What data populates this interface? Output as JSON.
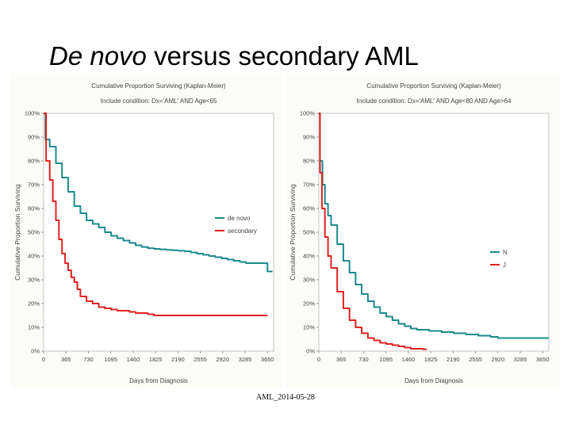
{
  "slide": {
    "title_italic": "De novo",
    "title_rest": " versus secondary AML",
    "footer": "AML_2014-05-28"
  },
  "colors": {
    "series1": "#1a8a8c",
    "series2": "#e02020",
    "axis_text": "#444444"
  },
  "chart_data": [
    {
      "type": "line",
      "title": "Cumulative Proportion Surviving (Kaplan-Meier)",
      "subtitle": "Include condition: Dx='AML' AND Age<65",
      "xlabel": "Days from Diagnosis",
      "ylabel": "Cumulative Proportion Surviving",
      "xlim": [
        0,
        3750
      ],
      "ylim": [
        0,
        100
      ],
      "xticks": [
        0,
        365,
        730,
        1095,
        1460,
        1825,
        2190,
        2555,
        2920,
        3285,
        3650
      ],
      "yticks": [
        0,
        10,
        20,
        30,
        40,
        50,
        60,
        70,
        80,
        90,
        100
      ],
      "ytick_labels": [
        "0%",
        "10%",
        "20%",
        "30%",
        "40%",
        "50%",
        "60%",
        "70%",
        "80%",
        "90%",
        "100%"
      ],
      "legend": "middle-right",
      "series": [
        {
          "name": "de novo",
          "color": "#1a8a8c",
          "x": [
            0,
            30,
            100,
            200,
            300,
            400,
            500,
            600,
            700,
            800,
            900,
            1000,
            1100,
            1200,
            1300,
            1400,
            1500,
            1600,
            1700,
            1800,
            1900,
            2000,
            2100,
            2200,
            2300,
            2400,
            2500,
            2600,
            2700,
            2800,
            2900,
            3000,
            3100,
            3200,
            3300,
            3400,
            3500,
            3600,
            3650,
            3650,
            3730
          ],
          "y": [
            100,
            89,
            86,
            79,
            73,
            67,
            61,
            58,
            55,
            53.5,
            52,
            50,
            48.5,
            47.5,
            46.5,
            45.5,
            44.5,
            43.8,
            43.3,
            43,
            42.8,
            42.6,
            42.4,
            42.2,
            42,
            41.5,
            41,
            40.5,
            40,
            39.5,
            39,
            38.5,
            38,
            37.5,
            37,
            37,
            37,
            37,
            37,
            33.5,
            33.5
          ]
        },
        {
          "name": "secondary",
          "color": "#e02020",
          "x": [
            0,
            40,
            100,
            150,
            200,
            250,
            300,
            350,
            400,
            450,
            500,
            550,
            600,
            700,
            800,
            900,
            1000,
            1100,
            1200,
            1300,
            1400,
            1500,
            1600,
            1700,
            1800,
            2000,
            2500,
            3000,
            3500,
            3650
          ],
          "y": [
            100,
            80,
            72,
            63,
            55,
            47,
            41,
            37,
            34,
            31,
            29,
            26,
            23,
            21,
            20,
            18.5,
            18,
            17.5,
            17,
            17,
            16.5,
            16,
            16,
            15.5,
            15,
            15,
            15,
            15,
            15,
            15
          ]
        }
      ]
    },
    {
      "type": "line",
      "title": "Cumulative Proportion Surviving (Kaplan-Meier)",
      "subtitle": "Include condition: Dx='AML' AND Age<80 AND Age>64",
      "xlabel": "Days from Diagnosis",
      "ylabel": "Cumulative Proportion Surviving",
      "xlim": [
        0,
        3750
      ],
      "ylim": [
        0,
        100
      ],
      "xticks": [
        0,
        365,
        730,
        1095,
        1460,
        1825,
        2190,
        2555,
        2920,
        3285,
        3650
      ],
      "yticks": [
        0,
        10,
        20,
        30,
        40,
        50,
        60,
        70,
        80,
        90,
        100
      ],
      "ytick_labels": [
        "0%",
        "10%",
        "20%",
        "30%",
        "40%",
        "50%",
        "60%",
        "70%",
        "80%",
        "90%",
        "100%"
      ],
      "legend": "lower-right",
      "series": [
        {
          "name": "N",
          "color": "#1a8a8c",
          "x": [
            0,
            20,
            60,
            100,
            150,
            200,
            300,
            400,
            500,
            600,
            700,
            800,
            900,
            1000,
            1100,
            1200,
            1300,
            1400,
            1500,
            1600,
            1800,
            2000,
            2200,
            2400,
            2600,
            2800,
            2920,
            3200,
            3500,
            3750
          ],
          "y": [
            100,
            80,
            70,
            62,
            57,
            53,
            45,
            38,
            33,
            28,
            24,
            21,
            18.5,
            16,
            14.5,
            13,
            11.5,
            10.5,
            9.5,
            9,
            8.5,
            8,
            7.5,
            7,
            6.5,
            6,
            5.5,
            5.5,
            5.5,
            5.5
          ]
        },
        {
          "name": "J",
          "color": "#e02020",
          "x": [
            0,
            20,
            50,
            100,
            150,
            200,
            300,
            400,
            500,
            600,
            700,
            800,
            900,
            1000,
            1100,
            1200,
            1300,
            1400,
            1500,
            1600,
            1700,
            1750
          ],
          "y": [
            100,
            75,
            60,
            48,
            40,
            35,
            25,
            18,
            13,
            10,
            7.5,
            5.5,
            4.5,
            3.5,
            3,
            2.5,
            2,
            1.5,
            1,
            1,
            0.8,
            0.5
          ]
        }
      ]
    }
  ]
}
